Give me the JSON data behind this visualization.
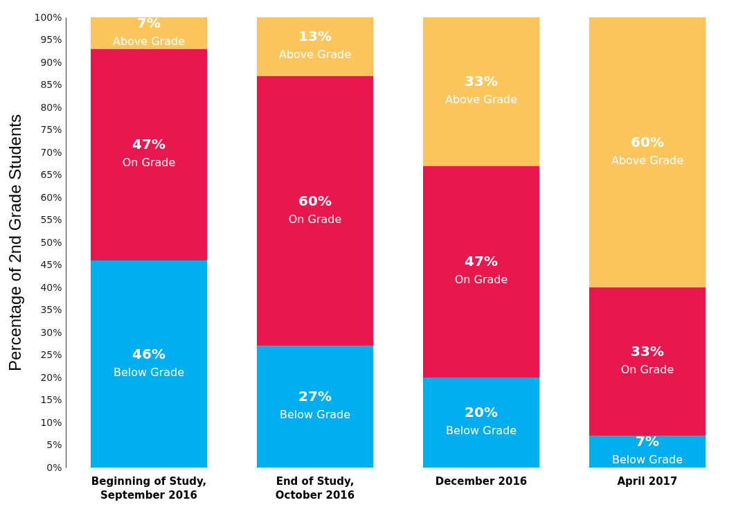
{
  "chart_data": {
    "type": "bar",
    "stacked": true,
    "ylabel": "Percentage of 2nd Grade Students",
    "categories": [
      "Beginning of Study, September 2016",
      "End of Study, October 2016",
      "December 2016",
      "April 2017"
    ],
    "ylim": [
      0,
      100
    ],
    "yticks": [
      {
        "value": 0,
        "label": "0%"
      },
      {
        "value": 5,
        "label": "5%"
      },
      {
        "value": 10,
        "label": "10%"
      },
      {
        "value": 15,
        "label": "15%"
      },
      {
        "value": 20,
        "label": "20%"
      },
      {
        "value": 25,
        "label": "25%"
      },
      {
        "value": 30,
        "label": "30%"
      },
      {
        "value": 35,
        "label": "35%"
      },
      {
        "value": 40,
        "label": "40%"
      },
      {
        "value": 45,
        "label": "45%"
      },
      {
        "value": 50,
        "label": "50%"
      },
      {
        "value": 55,
        "label": "55%"
      },
      {
        "value": 60,
        "label": "60%"
      },
      {
        "value": 65,
        "label": "65%"
      },
      {
        "value": 70,
        "label": "70%"
      },
      {
        "value": 75,
        "label": "75%"
      },
      {
        "value": 80,
        "label": "80%"
      },
      {
        "value": 85,
        "label": "85%"
      },
      {
        "value": 90,
        "label": "90%"
      },
      {
        "value": 95,
        "label": "95%"
      },
      {
        "value": 100,
        "label": "100%"
      }
    ],
    "series": [
      {
        "name": "Below Grade",
        "color": "#00aeef",
        "values": [
          46,
          27,
          20,
          7
        ],
        "value_labels": [
          "46%",
          "27%",
          "20%",
          "7%"
        ]
      },
      {
        "name": "On Grade",
        "color": "#e8174e",
        "values": [
          47,
          60,
          47,
          33
        ],
        "value_labels": [
          "47%",
          "60%",
          "47%",
          "33%"
        ]
      },
      {
        "name": "Above Grade",
        "color": "#fcc55e",
        "values": [
          7,
          13,
          33,
          60
        ],
        "value_labels": [
          "7%",
          "13%",
          "33%",
          "60%"
        ]
      }
    ],
    "legend": false,
    "grid": false
  }
}
